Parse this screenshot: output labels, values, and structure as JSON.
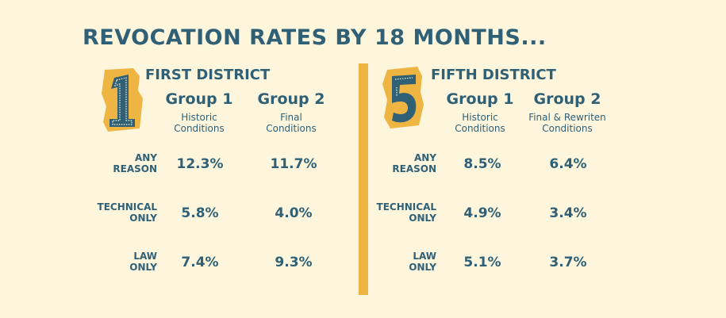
{
  "title": "REVOCATION RATES BY 18 MONTHS...",
  "colors": {
    "background": "#fdf6dc",
    "text": "#2f6076",
    "accent": "#efb542"
  },
  "districts": [
    {
      "badge": "1",
      "name": "FIRST DISTRICT",
      "groups": [
        {
          "title": "Group 1",
          "subtitle": [
            "Historic",
            "Conditions"
          ]
        },
        {
          "title": "Group 2",
          "subtitle": [
            "Final",
            "Conditions"
          ]
        }
      ],
      "rows": [
        {
          "label": [
            "ANY",
            "REASON"
          ],
          "values": [
            "12.3%",
            "11.7%"
          ]
        },
        {
          "label": [
            "TECHNICAL",
            "ONLY"
          ],
          "values": [
            "5.8%",
            "4.0%"
          ]
        },
        {
          "label": [
            "LAW",
            "ONLY"
          ],
          "values": [
            "7.4%",
            "9.3%"
          ]
        }
      ]
    },
    {
      "badge": "5",
      "name": "FIFTH DISTRICT",
      "groups": [
        {
          "title": "Group 1",
          "subtitle": [
            "Historic",
            "Conditions"
          ]
        },
        {
          "title": "Group 2",
          "subtitle": [
            "Final & Rewriten",
            "Conditions"
          ]
        }
      ],
      "rows": [
        {
          "label": [
            "ANY",
            "REASON"
          ],
          "values": [
            "8.5%",
            "6.4%"
          ]
        },
        {
          "label": [
            "TECHNICAL",
            "ONLY"
          ],
          "values": [
            "4.9%",
            "3.4%"
          ]
        },
        {
          "label": [
            "LAW",
            "ONLY"
          ],
          "values": [
            "5.1%",
            "3.7%"
          ]
        }
      ]
    }
  ]
}
